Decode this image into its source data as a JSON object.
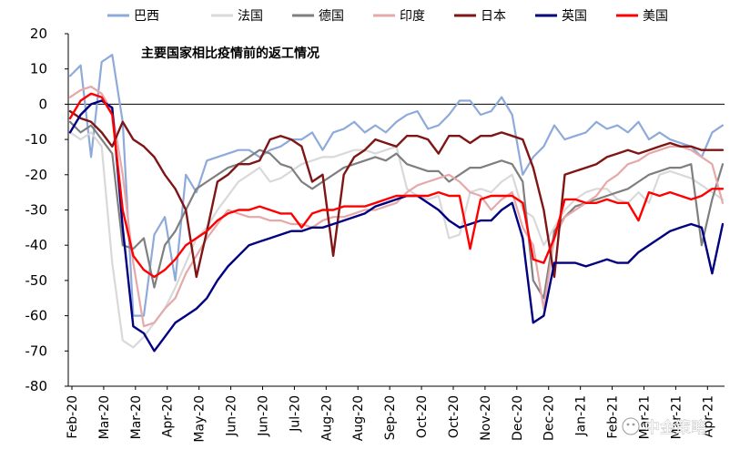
{
  "watermark": "中金策略",
  "chart_data": {
    "type": "line",
    "title": "主要国家相比疫情前的返工情况",
    "xlabel": "",
    "ylabel": "",
    "ylim": [
      -80,
      20
    ],
    "yticks": [
      20,
      10,
      0,
      -10,
      -20,
      -30,
      -40,
      -50,
      -60,
      -70,
      -80
    ],
    "x_tick_labels": [
      "Feb-20",
      "Mar-20",
      "Mar-20",
      "Apr-20",
      "May-20",
      "Jun-20",
      "Jun-20",
      "Jul-20",
      "Aug-20",
      "Aug-20",
      "Sep-20",
      "Oct-20",
      "Oct-20",
      "Nov-20",
      "Dec-20",
      "Dec-20",
      "Jan-21",
      "Feb-21",
      "Mar-21",
      "Mar-21",
      "Apr-21"
    ],
    "legend_position": "top",
    "grid": false,
    "x_points": 63,
    "series": [
      {
        "name": "巴西",
        "color": "#8eaadb",
        "width": 2.2,
        "values": [
          8,
          11,
          -15,
          12,
          14,
          -5,
          -60,
          -60,
          -37,
          -32,
          -50,
          -20,
          -25,
          -16,
          -15,
          -14,
          -13,
          -13,
          -15,
          -13,
          -12,
          -10,
          -10,
          -8,
          -13,
          -8,
          -7,
          -5,
          -8,
          -6,
          -8,
          -5,
          -3,
          -2,
          -7,
          -6,
          -3,
          1,
          1,
          -3,
          -2,
          2,
          -3,
          -20,
          -15,
          -12,
          -6,
          -10,
          -9,
          -8,
          -5,
          -7,
          -6,
          -8,
          -5,
          -10,
          -8,
          -10,
          -11,
          -12,
          -15,
          -8,
          -6
        ]
      },
      {
        "name": "法国",
        "color": "#d9d9d9",
        "width": 2.2,
        "values": [
          -8,
          -10,
          -8,
          -12,
          -45,
          -67,
          -69,
          -66,
          -62,
          -58,
          -52,
          -45,
          -38,
          -35,
          -30,
          -26,
          -22,
          -20,
          -18,
          -22,
          -21,
          -19,
          -17,
          -16,
          -15,
          -15,
          -14,
          -13,
          -13,
          -14,
          -13,
          -12,
          -24,
          -26,
          -27,
          -26,
          -38,
          -37,
          -25,
          -24,
          -25,
          -22,
          -20,
          -30,
          -32,
          -40,
          -35,
          -30,
          -27,
          -25,
          -24,
          -24,
          -27,
          -28,
          -25,
          -28,
          -20,
          -19,
          -20,
          -21,
          -23,
          -25,
          -27
        ]
      },
      {
        "name": "德国",
        "color": "#7f7f7f",
        "width": 2.2,
        "values": [
          -5,
          -8,
          -6,
          -10,
          -14,
          -40,
          -41,
          -38,
          -52,
          -40,
          -36,
          -30,
          -24,
          -22,
          -20,
          -18,
          -17,
          -15,
          -13,
          -14,
          -17,
          -18,
          -22,
          -24,
          -22,
          -20,
          -18,
          -17,
          -16,
          -15,
          -16,
          -14,
          -17,
          -18,
          -19,
          -19,
          -22,
          -20,
          -18,
          -18,
          -17,
          -16,
          -17,
          -22,
          -50,
          -55,
          -36,
          -32,
          -29,
          -28,
          -27,
          -26,
          -25,
          -24,
          -22,
          -20,
          -19,
          -18,
          -18,
          -17,
          -40,
          -27,
          -17
        ]
      },
      {
        "name": "印度",
        "color": "#e6a8a8",
        "width": 2.2,
        "values": [
          2,
          4,
          5,
          3,
          -2,
          -20,
          -45,
          -63,
          -62,
          -58,
          -55,
          -48,
          -43,
          -38,
          -34,
          -30,
          -31,
          -32,
          -32,
          -33,
          -33,
          -34,
          -34,
          -35,
          -33,
          -32,
          -32,
          -31,
          -30,
          -30,
          -29,
          -28,
          -25,
          -23,
          -22,
          -21,
          -20,
          -22,
          -25,
          -26,
          -30,
          -27,
          -25,
          -35,
          -40,
          -58,
          -38,
          -32,
          -30,
          -28,
          -26,
          -22,
          -20,
          -17,
          -16,
          -14,
          -13,
          -12,
          -12,
          -13,
          -15,
          -17,
          -28
        ]
      },
      {
        "name": "日本",
        "color": "#7f1515",
        "width": 2.4,
        "values": [
          -2,
          -4,
          -5,
          -8,
          -12,
          -5,
          -10,
          -12,
          -15,
          -20,
          -24,
          -30,
          -49,
          -36,
          -22,
          -20,
          -17,
          -17,
          -16,
          -10,
          -9,
          -10,
          -12,
          -22,
          -20,
          -43,
          -20,
          -15,
          -13,
          -10,
          -11,
          -12,
          -9,
          -9,
          -10,
          -14,
          -9,
          -9,
          -11,
          -9,
          -9,
          -8,
          -9,
          -10,
          -18,
          -30,
          -49,
          -20,
          -19,
          -18,
          -17,
          -15,
          -14,
          -13,
          -14,
          -13,
          -12,
          -11,
          -12,
          -12,
          -13,
          -13,
          -13
        ]
      },
      {
        "name": "英国",
        "color": "#000080",
        "width": 2.4,
        "values": [
          -8,
          -3,
          0,
          1,
          -1,
          -35,
          -63,
          -65,
          -70,
          -66,
          -62,
          -60,
          -58,
          -55,
          -50,
          -46,
          -43,
          -40,
          -39,
          -38,
          -37,
          -36,
          -36,
          -35,
          -35,
          -34,
          -33,
          -32,
          -31,
          -29,
          -28,
          -27,
          -26,
          -26,
          -28,
          -30,
          -33,
          -35,
          -34,
          -33,
          -33,
          -30,
          -28,
          -38,
          -62,
          -60,
          -45,
          -45,
          -45,
          -46,
          -45,
          -44,
          -45,
          -45,
          -42,
          -40,
          -38,
          -36,
          -35,
          -34,
          -35,
          -48,
          -34
        ]
      },
      {
        "name": "美国",
        "color": "#ff0000",
        "width": 2.4,
        "values": [
          -4,
          1,
          3,
          2,
          -3,
          -30,
          -43,
          -47,
          -49,
          -47,
          -44,
          -40,
          -38,
          -36,
          -33,
          -31,
          -30,
          -30,
          -29,
          -30,
          -31,
          -31,
          -35,
          -31,
          -30,
          -30,
          -29,
          -29,
          -29,
          -28,
          -27,
          -26,
          -26,
          -26,
          -26,
          -25,
          -26,
          -26,
          -41,
          -27,
          -26,
          -26,
          -26,
          -28,
          -44,
          -45,
          -38,
          -27,
          -27,
          -28,
          -28,
          -27,
          -28,
          -28,
          -33,
          -25,
          -26,
          -25,
          -26,
          -27,
          -26,
          -24,
          -24
        ]
      }
    ]
  }
}
